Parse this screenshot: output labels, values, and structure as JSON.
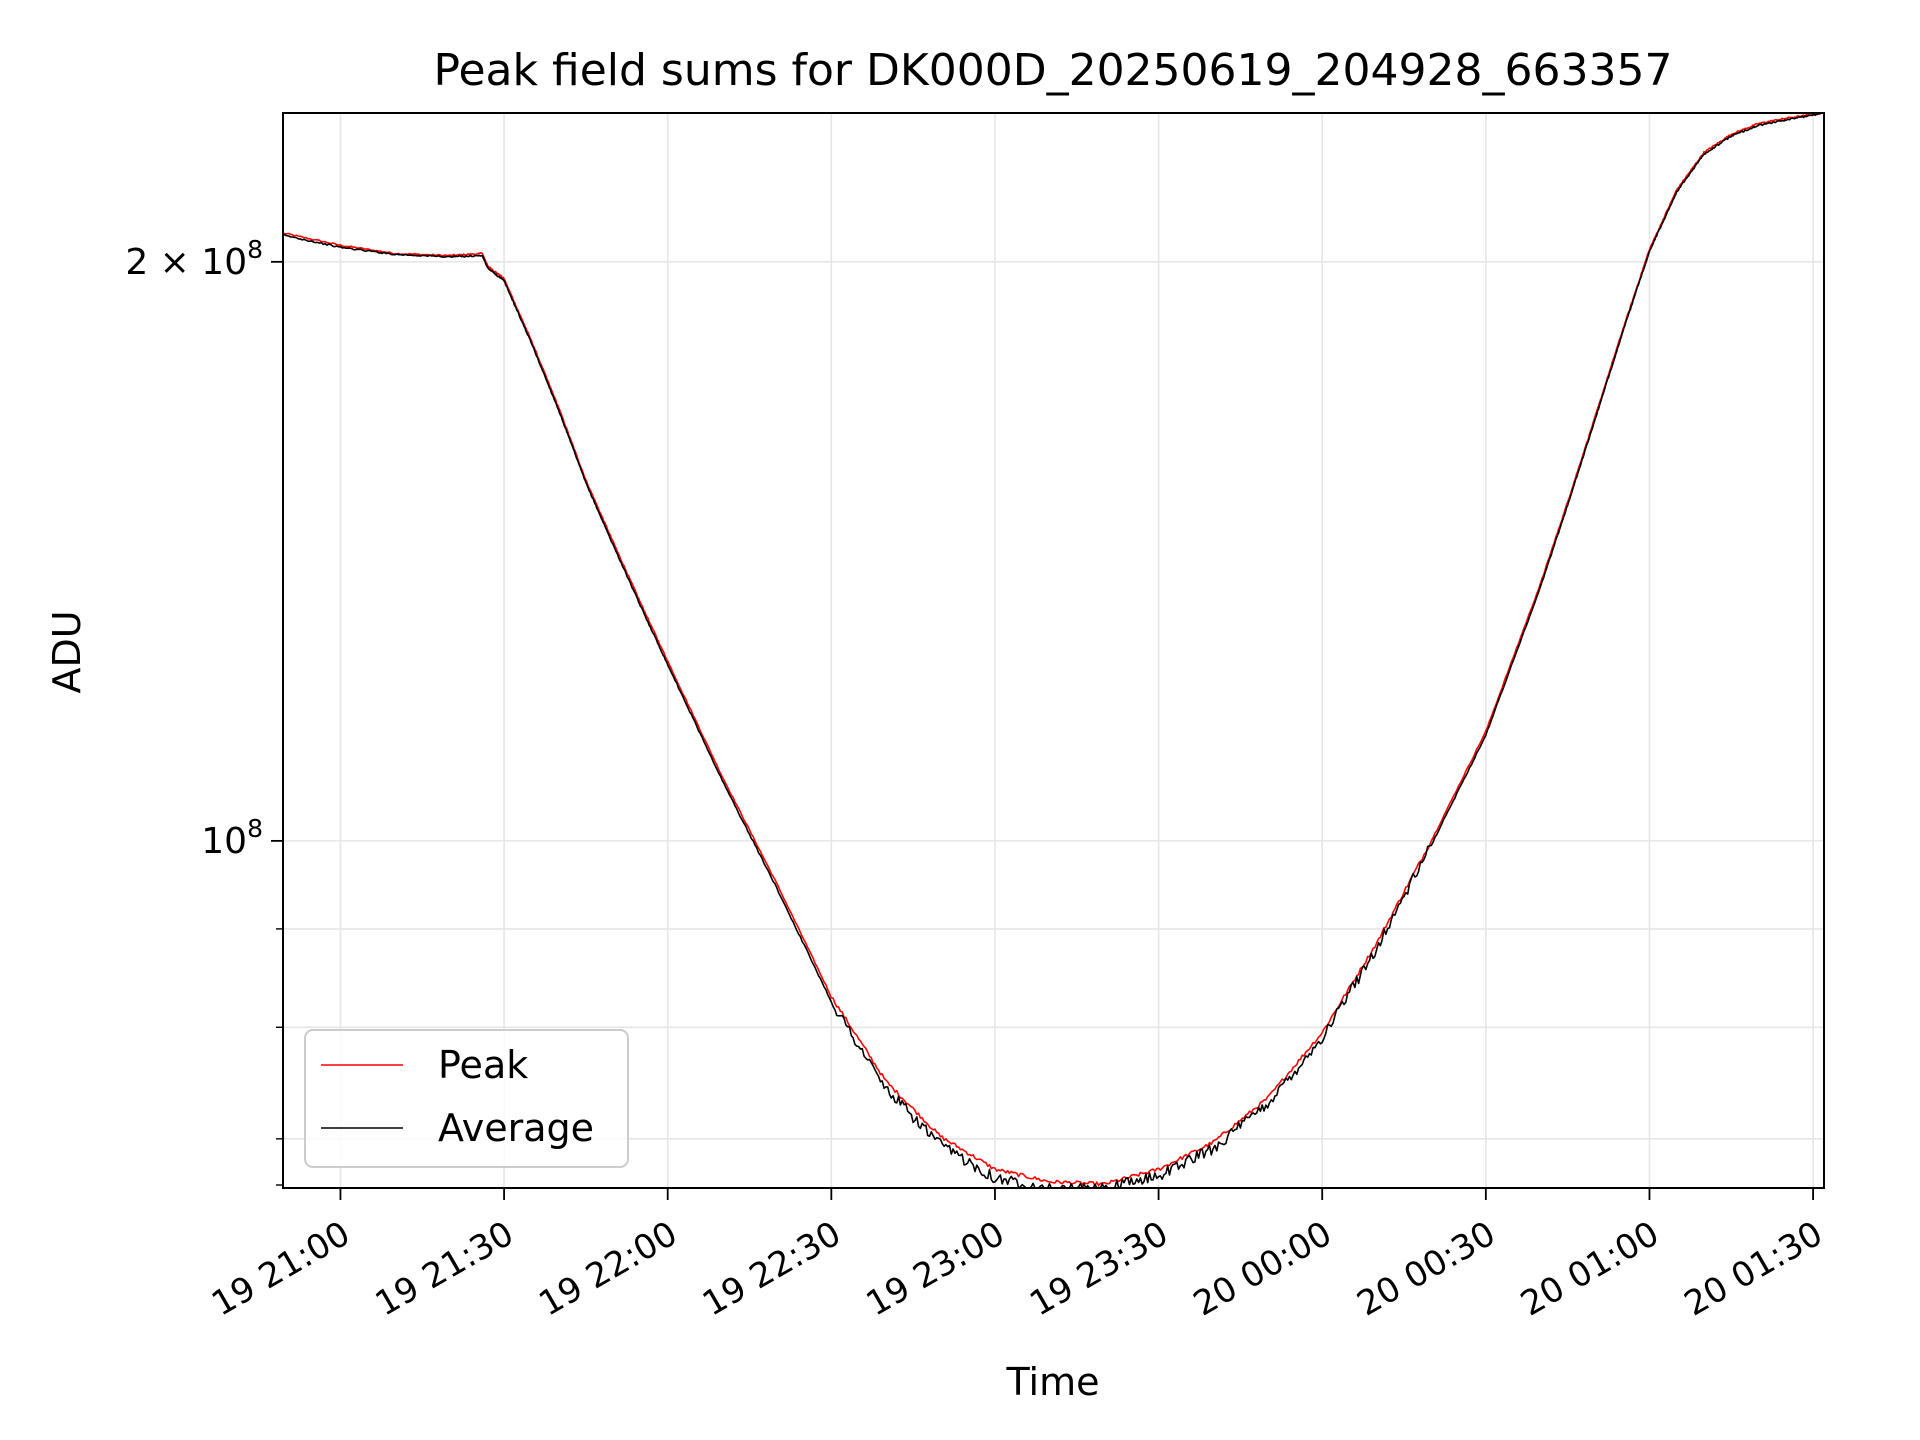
{
  "chart_data": {
    "type": "line",
    "title": "Peak field sums for DK000D_20250619_204928_663357",
    "xlabel": "Time",
    "ylabel": "ADU",
    "x_axis_type": "datetime",
    "xlim": [
      "2025-06-19T20:49:28",
      "2025-06-20T01:32:00"
    ],
    "y_scale": "log",
    "ylim": [
      66000000,
      239000000
    ],
    "x_ticks": [
      {
        "value": "2025-06-19T21:00:00",
        "label": "19 21:00"
      },
      {
        "value": "2025-06-19T21:30:00",
        "label": "19 21:30"
      },
      {
        "value": "2025-06-19T22:00:00",
        "label": "19 22:00"
      },
      {
        "value": "2025-06-19T22:30:00",
        "label": "19 22:30"
      },
      {
        "value": "2025-06-19T23:00:00",
        "label": "19 23:00"
      },
      {
        "value": "2025-06-19T23:30:00",
        "label": "19 23:30"
      },
      {
        "value": "2025-06-20T00:00:00",
        "label": "20 00:00"
      },
      {
        "value": "2025-06-20T00:30:00",
        "label": "20 00:30"
      },
      {
        "value": "2025-06-20T01:00:00",
        "label": "20 01:00"
      },
      {
        "value": "2025-06-20T01:30:00",
        "label": "20 01:30"
      }
    ],
    "y_major_ticks": [
      {
        "value": 100000000,
        "label_base": "10",
        "label_exp": "8",
        "label_coeff": ""
      },
      {
        "value": 200000000,
        "label_base": "10",
        "label_exp": "8",
        "label_coeff": "2 × "
      }
    ],
    "y_minor_ticks": [
      70000000,
      80000000,
      90000000
    ],
    "grid": true,
    "legend": {
      "position": "lower-left"
    },
    "series": [
      {
        "name": "Peak",
        "color": "#ff0000",
        "x": [
          "2025-06-19T20:49:28",
          "2025-06-19T21:00:00",
          "2025-06-19T21:10:00",
          "2025-06-19T21:20:00",
          "2025-06-19T21:26:00",
          "2025-06-19T21:27:00",
          "2025-06-19T21:30:00",
          "2025-06-19T21:35:00",
          "2025-06-19T21:40:00",
          "2025-06-19T21:45:00",
          "2025-06-19T21:50:00",
          "2025-06-19T21:55:00",
          "2025-06-19T22:00:00",
          "2025-06-19T22:10:00",
          "2025-06-19T22:20:00",
          "2025-06-19T22:30:00",
          "2025-06-19T22:40:00",
          "2025-06-19T22:50:00",
          "2025-06-19T23:00:00",
          "2025-06-19T23:10:00",
          "2025-06-19T23:20:00",
          "2025-06-19T23:30:00",
          "2025-06-19T23:40:00",
          "2025-06-19T23:50:00",
          "2025-06-20T00:00:00",
          "2025-06-20T00:10:00",
          "2025-06-20T00:20:00",
          "2025-06-20T00:30:00",
          "2025-06-20T00:40:00",
          "2025-06-20T00:45:00",
          "2025-06-20T00:50:00",
          "2025-06-20T00:55:00",
          "2025-06-20T01:00:00",
          "2025-06-20T01:05:00",
          "2025-06-20T01:10:00",
          "2025-06-20T01:15:00",
          "2025-06-20T01:20:00",
          "2025-06-20T01:25:00",
          "2025-06-20T01:32:00"
        ],
        "values": [
          207000000,
          204000000,
          202000000,
          201500000,
          202000000,
          199000000,
          196000000,
          182000000,
          168000000,
          154000000,
          143000000,
          133000000,
          124000000,
          108000000,
          95000000,
          83000000,
          75000000,
          70200000,
          67500000,
          66500000,
          66300000,
          67500000,
          69700000,
          73500000,
          79500000,
          88500000,
          100000000,
          114000000,
          136000000,
          150000000,
          166000000,
          184000000,
          203000000,
          218000000,
          228000000,
          233000000,
          236000000,
          237500000,
          239000000
        ]
      },
      {
        "name": "Average",
        "color": "#000000",
        "x": [
          "2025-06-19T20:49:28",
          "2025-06-19T21:00:00",
          "2025-06-19T21:10:00",
          "2025-06-19T21:20:00",
          "2025-06-19T21:26:00",
          "2025-06-19T21:27:00",
          "2025-06-19T21:30:00",
          "2025-06-19T21:35:00",
          "2025-06-19T21:40:00",
          "2025-06-19T21:45:00",
          "2025-06-19T21:50:00",
          "2025-06-19T21:55:00",
          "2025-06-19T22:00:00",
          "2025-06-19T22:10:00",
          "2025-06-19T22:20:00",
          "2025-06-19T22:30:00",
          "2025-06-19T22:40:00",
          "2025-06-19T22:50:00",
          "2025-06-19T23:00:00",
          "2025-06-19T23:10:00",
          "2025-06-19T23:20:00",
          "2025-06-19T23:30:00",
          "2025-06-19T23:40:00",
          "2025-06-19T23:50:00",
          "2025-06-20T00:00:00",
          "2025-06-20T00:10:00",
          "2025-06-20T00:20:00",
          "2025-06-20T00:30:00",
          "2025-06-20T00:40:00",
          "2025-06-20T00:45:00",
          "2025-06-20T00:50:00",
          "2025-06-20T00:55:00",
          "2025-06-20T01:00:00",
          "2025-06-20T01:05:00",
          "2025-06-20T01:10:00",
          "2025-06-20T01:15:00",
          "2025-06-20T01:20:00",
          "2025-06-20T01:25:00",
          "2025-06-20T01:32:00"
        ],
        "values": [
          206500000,
          203500000,
          201800000,
          201200000,
          201500000,
          198500000,
          195500000,
          181500000,
          167500000,
          153500000,
          142500000,
          132500000,
          123500000,
          107500000,
          94500000,
          82500000,
          74300000,
          69500000,
          66800000,
          65900000,
          65900000,
          67000000,
          69200000,
          73000000,
          79000000,
          88000000,
          99500000,
          113500000,
          135500000,
          149500000,
          165500000,
          183500000,
          202500000,
          217500000,
          227500000,
          232500000,
          235500000,
          237000000,
          239000000
        ]
      }
    ]
  }
}
